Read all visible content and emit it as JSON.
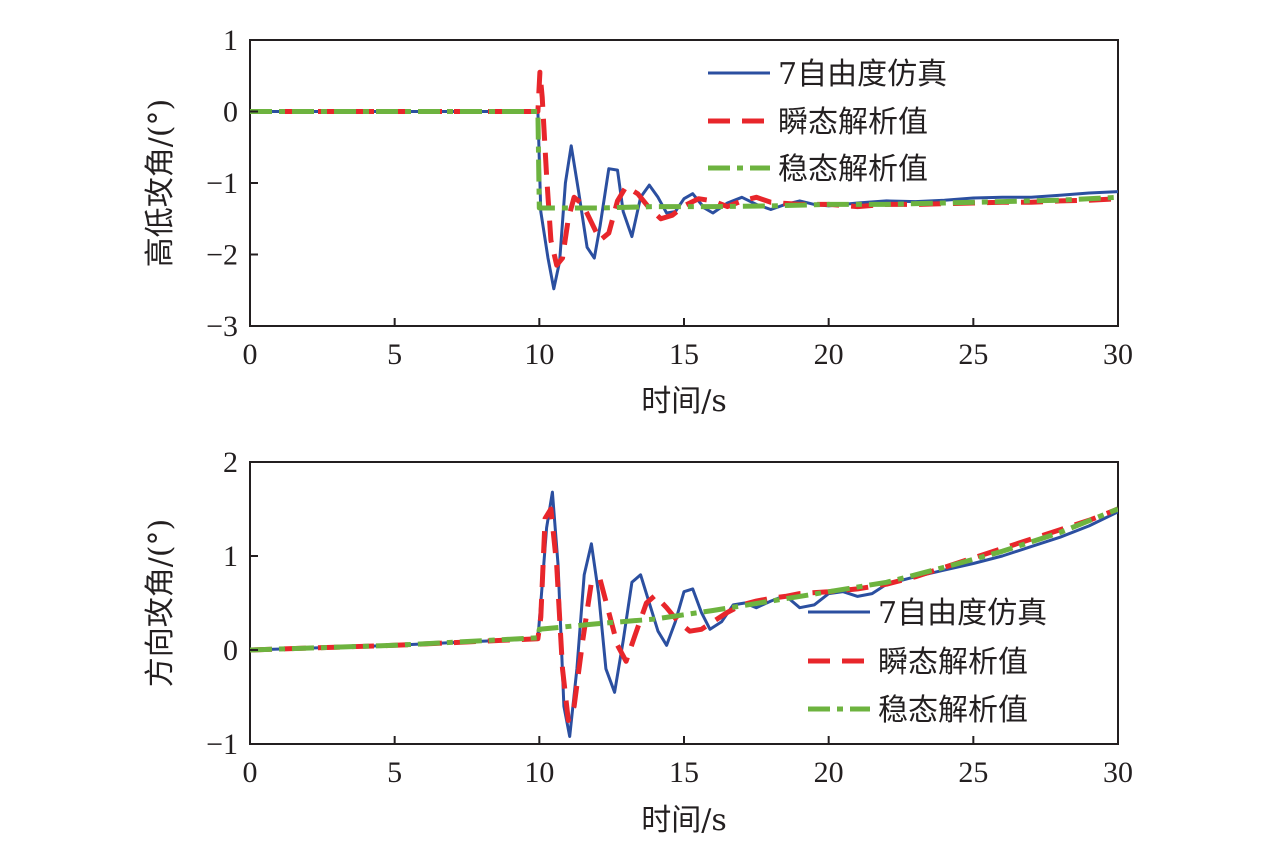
{
  "chart_data": [
    {
      "type": "line",
      "xlabel": "时间/s",
      "ylabel": "高低攻角/(°)",
      "xlim": [
        0,
        30
      ],
      "ylim": [
        -3,
        1
      ],
      "xticks": [
        0,
        5,
        10,
        15,
        20,
        25,
        30
      ],
      "yticks": [
        1,
        0,
        -1,
        -2,
        -3
      ],
      "ytick_labels": [
        "1",
        "0",
        "−1",
        "−2",
        "−3"
      ],
      "grid": false,
      "legend_position": "top-right",
      "series": [
        {
          "name": "7自由度仿真",
          "color": "#2b4fa0",
          "style": "solid",
          "x": [
            0,
            9.95,
            10.05,
            10.3,
            10.5,
            10.7,
            10.9,
            11.1,
            11.35,
            11.65,
            11.9,
            12.1,
            12.4,
            12.7,
            12.9,
            13.2,
            13.5,
            13.8,
            14.1,
            14.4,
            14.7,
            15.0,
            15.3,
            15.7,
            16.0,
            16.5,
            17.0,
            17.5,
            18.0,
            18.5,
            19.0,
            19.5,
            20.0,
            21.0,
            22.0,
            23.0,
            24.0,
            25.0,
            26.0,
            27.0,
            28.0,
            29.0,
            30.0
          ],
          "y": [
            0,
            0,
            -1.4,
            -2.05,
            -2.48,
            -2.1,
            -1.0,
            -0.48,
            -1.1,
            -1.9,
            -2.05,
            -1.6,
            -0.8,
            -0.82,
            -1.4,
            -1.75,
            -1.2,
            -1.03,
            -1.2,
            -1.42,
            -1.4,
            -1.22,
            -1.15,
            -1.35,
            -1.42,
            -1.28,
            -1.2,
            -1.3,
            -1.37,
            -1.3,
            -1.25,
            -1.3,
            -1.32,
            -1.28,
            -1.25,
            -1.26,
            -1.24,
            -1.21,
            -1.2,
            -1.2,
            -1.17,
            -1.14,
            -1.12
          ]
        },
        {
          "name": "瞬态解析值",
          "color": "#e8262b",
          "style": "dashed",
          "x": [
            0,
            9.95,
            10.02,
            10.1,
            10.25,
            10.4,
            10.6,
            10.8,
            11.0,
            11.2,
            11.5,
            11.8,
            12.1,
            12.4,
            12.7,
            13.0,
            13.4,
            13.8,
            14.2,
            14.6,
            15.0,
            15.5,
            16.0,
            16.5,
            17.0,
            17.5,
            18.0,
            19.0,
            20.0,
            21.0,
            22.0,
            23.0,
            24.0,
            25.0,
            26.0,
            27.0,
            28.0,
            29.0,
            30.0
          ],
          "y": [
            0,
            0,
            0.55,
            0.2,
            -0.9,
            -1.8,
            -2.15,
            -2.05,
            -1.5,
            -1.2,
            -1.3,
            -1.55,
            -1.8,
            -1.7,
            -1.25,
            -1.05,
            -1.15,
            -1.35,
            -1.5,
            -1.45,
            -1.32,
            -1.22,
            -1.25,
            -1.33,
            -1.25,
            -1.2,
            -1.27,
            -1.3,
            -1.3,
            -1.33,
            -1.3,
            -1.3,
            -1.29,
            -1.28,
            -1.27,
            -1.27,
            -1.25,
            -1.24,
            -1.22
          ]
        },
        {
          "name": "稳态解析值",
          "color": "#6db33f",
          "style": "dashdot",
          "x": [
            0,
            9.95,
            10.0,
            12,
            14,
            16,
            18,
            20,
            22,
            24,
            26,
            28,
            30
          ],
          "y": [
            0,
            0,
            -1.35,
            -1.35,
            -1.33,
            -1.33,
            -1.32,
            -1.3,
            -1.3,
            -1.28,
            -1.26,
            -1.24,
            -1.2
          ]
        }
      ]
    },
    {
      "type": "line",
      "xlabel": "时间/s",
      "ylabel": "方向攻角/(°)",
      "xlim": [
        0,
        30
      ],
      "ylim": [
        -1,
        2
      ],
      "xticks": [
        0,
        5,
        10,
        15,
        20,
        25,
        30
      ],
      "yticks": [
        2,
        1,
        0,
        -1
      ],
      "ytick_labels": [
        "2",
        "1",
        "0",
        "−1"
      ],
      "grid": false,
      "legend_position": "lower-right",
      "series": [
        {
          "name": "7自由度仿真",
          "color": "#2b4fa0",
          "style": "solid",
          "x": [
            0,
            5,
            9.95,
            10.05,
            10.25,
            10.45,
            10.65,
            10.85,
            11.05,
            11.3,
            11.55,
            11.8,
            12.05,
            12.3,
            12.6,
            12.9,
            13.2,
            13.5,
            13.8,
            14.1,
            14.4,
            14.7,
            15.0,
            15.3,
            15.6,
            15.9,
            16.3,
            16.7,
            17.1,
            17.5,
            18.0,
            18.5,
            19.0,
            19.5,
            20.0,
            20.5,
            21.0,
            21.5,
            22.0,
            23.0,
            24.0,
            25.0,
            26.0,
            27.0,
            28.0,
            29.0,
            30.0
          ],
          "y": [
            0,
            0.05,
            0.12,
            0.5,
            1.3,
            1.68,
            0.9,
            -0.6,
            -0.92,
            -0.2,
            0.8,
            1.13,
            0.6,
            -0.2,
            -0.45,
            0.1,
            0.72,
            0.8,
            0.5,
            0.2,
            0.05,
            0.3,
            0.62,
            0.65,
            0.4,
            0.22,
            0.3,
            0.48,
            0.5,
            0.45,
            0.52,
            0.58,
            0.45,
            0.48,
            0.6,
            0.62,
            0.57,
            0.6,
            0.7,
            0.78,
            0.85,
            0.92,
            1.0,
            1.1,
            1.2,
            1.32,
            1.47
          ]
        },
        {
          "name": "瞬态解析值",
          "color": "#e8262b",
          "style": "dashed",
          "x": [
            0,
            5,
            9.95,
            10.05,
            10.2,
            10.4,
            10.6,
            10.8,
            11.0,
            11.2,
            11.5,
            11.8,
            12.1,
            12.4,
            12.7,
            13.0,
            13.3,
            13.7,
            14.0,
            14.4,
            14.8,
            15.2,
            15.6,
            16.0,
            16.5,
            17.0,
            17.5,
            18.0,
            18.5,
            19.0,
            20.0,
            21.0,
            22.0,
            23.0,
            24.0,
            25.0,
            26.0,
            27.0,
            28.0,
            29.0,
            30.0
          ],
          "y": [
            0,
            0.05,
            0.12,
            0.35,
            1.4,
            1.5,
            0.9,
            -0.2,
            -0.75,
            -0.6,
            0.1,
            0.72,
            0.75,
            0.4,
            0.05,
            -0.12,
            0.15,
            0.5,
            0.58,
            0.45,
            0.3,
            0.2,
            0.22,
            0.3,
            0.4,
            0.48,
            0.52,
            0.55,
            0.57,
            0.6,
            0.62,
            0.65,
            0.7,
            0.78,
            0.88,
            0.98,
            1.08,
            1.18,
            1.28,
            1.38,
            1.5
          ]
        },
        {
          "name": "稳态解析值",
          "color": "#6db33f",
          "style": "dashdot",
          "x": [
            0,
            5,
            9.95,
            10.0,
            12,
            14,
            16,
            18,
            20,
            22,
            24,
            26,
            28,
            30
          ],
          "y": [
            0,
            0.05,
            0.13,
            0.22,
            0.28,
            0.33,
            0.42,
            0.52,
            0.62,
            0.72,
            0.88,
            1.05,
            1.25,
            1.5
          ]
        }
      ]
    }
  ]
}
